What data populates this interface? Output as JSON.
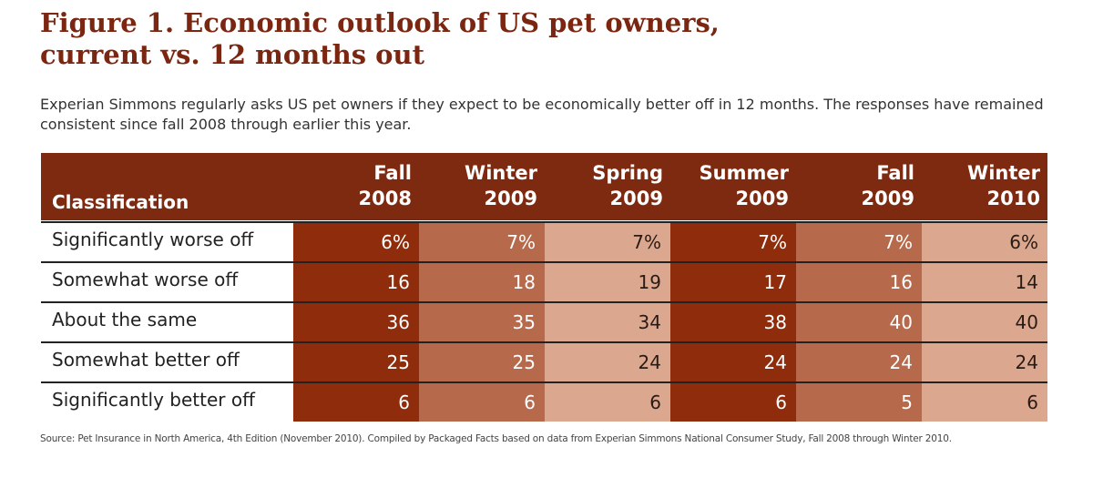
{
  "title_line1": "Figure 1. Economic outlook of US pet owners,",
  "title_line2": "current vs. 12 months out",
  "subtitle": "Experian Simmons regularly asks US pet owners if they expect  to be economically better off in 12 months. The responses have remained consistent since fall 2008 through earlier this year.",
  "table": {
    "header_label": "Classification",
    "columns": [
      [
        "Fall",
        "2008"
      ],
      [
        "Winter",
        "2009"
      ],
      [
        "Spring",
        "2009"
      ],
      [
        "Summer",
        "2009"
      ],
      [
        "Fall",
        "2009"
      ],
      [
        "Winter",
        "2010"
      ]
    ],
    "rows": [
      {
        "label": "Significantly worse off",
        "values": [
          "6%",
          "7%",
          "7%",
          "7%",
          "7%",
          "6%"
        ]
      },
      {
        "label": "Somewhat worse off",
        "values": [
          "16",
          "18",
          "19",
          "17",
          "16",
          "14"
        ]
      },
      {
        "label": "About the same",
        "values": [
          "36",
          "35",
          "34",
          "38",
          "40",
          "40"
        ]
      },
      {
        "label": "Somewhat better off",
        "values": [
          "25",
          "25",
          "24",
          "24",
          "24",
          "24"
        ]
      },
      {
        "label": "Significantly better off",
        "values": [
          "6",
          "6",
          "6",
          "6",
          "5",
          "6"
        ]
      }
    ]
  },
  "source": "Source:  Pet Insurance in North America, 4th Edition (November 2010).  Compiled by Packaged Facts based on data from Experian Simmons National Consumer Study, Fall 2008 through Winter 2010.",
  "colors": {
    "header": "#7e2a10",
    "dark": "#8e2c0c",
    "medium": "#b7694b",
    "light": "#dba88f"
  }
}
